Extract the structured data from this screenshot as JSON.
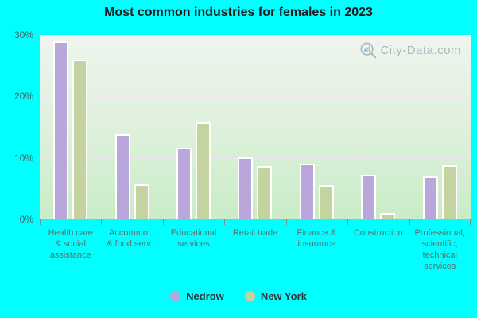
{
  "page": {
    "background_color": "#00ffff"
  },
  "watermark": {
    "text": "City-Data.com",
    "icon": "magnifier-with-bars-icon",
    "color": "#9aa8b0"
  },
  "chart_data": {
    "type": "bar",
    "title": "Most common industries for females in 2023",
    "categories": [
      "Health care & social assistance",
      "Accommo... & food serv...",
      "Educational services",
      "Retail trade",
      "Finance & insurance",
      "Construction",
      "Professional, scientific, technical services"
    ],
    "categories_lines": [
      [
        "Health care",
        "& social",
        "assistance"
      ],
      [
        "Accommo...",
        "& food serv..."
      ],
      [
        "Educational",
        "services"
      ],
      [
        "Retail trade"
      ],
      [
        "Finance &",
        "insurance"
      ],
      [
        "Construction"
      ],
      [
        "Professional,",
        "scientific,",
        "technical",
        "services"
      ]
    ],
    "series": [
      {
        "name": "Nedrow",
        "color": "#b9a6db",
        "values": [
          29.0,
          13.8,
          11.6,
          10.1,
          9.1,
          7.3,
          7.0
        ]
      },
      {
        "name": "New York",
        "color": "#c3d4a0",
        "values": [
          26.0,
          5.7,
          15.8,
          8.7,
          5.6,
          1.0,
          8.8
        ]
      }
    ],
    "xlabel": "",
    "ylabel": "",
    "ylim": [
      0,
      30
    ],
    "yticks": [
      {
        "value": 0,
        "label": "0%"
      },
      {
        "value": 10,
        "label": "10%"
      },
      {
        "value": 20,
        "label": "20%"
      },
      {
        "value": 30,
        "label": "30%"
      }
    ],
    "grid": true,
    "legend_position": "bottom"
  }
}
